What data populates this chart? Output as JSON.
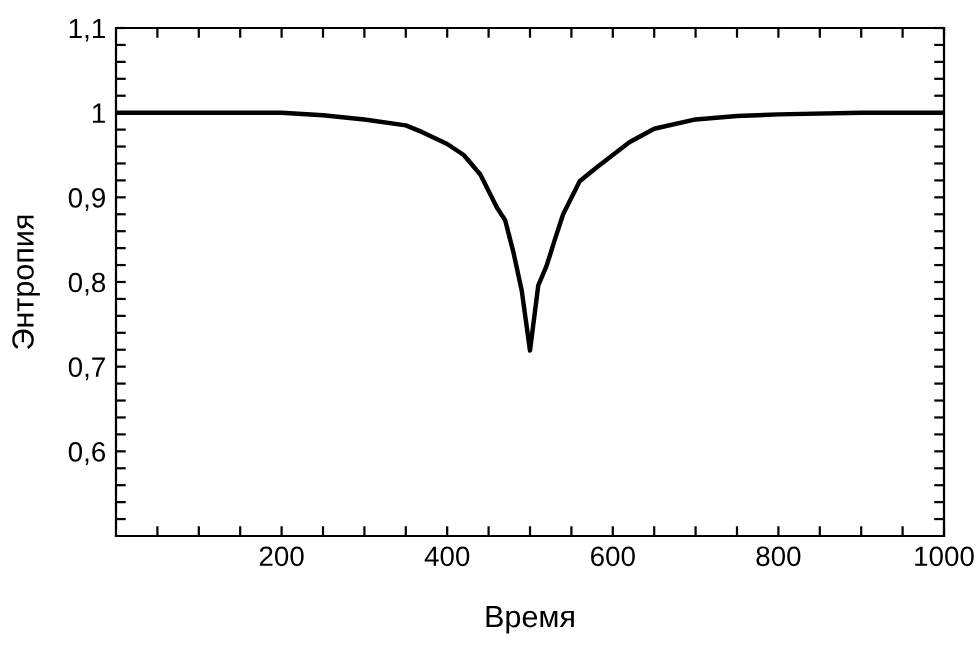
{
  "chart_data": {
    "type": "line",
    "xlabel": "Время",
    "ylabel": "Энтропия",
    "x": [
      0,
      100,
      200,
      250,
      300,
      350,
      370,
      400,
      420,
      440,
      460,
      470,
      480,
      490,
      500,
      510,
      520,
      530,
      540,
      560,
      580,
      600,
      620,
      650,
      700,
      750,
      800,
      900,
      1000
    ],
    "series": [
      {
        "color": "#000000",
        "values": [
          1.0,
          1.0,
          1.0,
          0.997,
          0.992,
          0.985,
          0.977,
          0.963,
          0.95,
          0.927,
          0.888,
          0.873,
          0.835,
          0.79,
          0.719,
          0.796,
          0.819,
          0.85,
          0.88,
          0.919,
          0.935,
          0.95,
          0.965,
          0.981,
          0.992,
          0.996,
          0.998,
          1.0,
          1.0
        ]
      }
    ],
    "xlim": [
      0,
      1000
    ],
    "ylim": [
      0.5,
      1.1
    ],
    "xticks": [
      {
        "value": 50,
        "label": null
      },
      {
        "value": 100,
        "label": null
      },
      {
        "value": 150,
        "label": null
      },
      200,
      {
        "value": 250,
        "label": null
      },
      {
        "value": 300,
        "label": null
      },
      {
        "value": 350,
        "label": null
      },
      400,
      {
        "value": 450,
        "label": null
      },
      {
        "value": 500,
        "label": null
      },
      {
        "value": 550,
        "label": null
      },
      600,
      {
        "value": 650,
        "label": null
      },
      {
        "value": 700,
        "label": null
      },
      {
        "value": 750,
        "label": null
      },
      800,
      {
        "value": 850,
        "label": null
      },
      {
        "value": 900,
        "label": null
      },
      {
        "value": 950,
        "label": null
      },
      1000
    ],
    "yticks": [
      {
        "value": 0.52,
        "label": null
      },
      {
        "value": 0.54,
        "label": null
      },
      {
        "value": 0.56,
        "label": null
      },
      {
        "value": 0.58,
        "label": null
      },
      {
        "value": 0.6,
        "label": "0,6"
      },
      {
        "value": 0.62,
        "label": null
      },
      {
        "value": 0.64,
        "label": null
      },
      {
        "value": 0.66,
        "label": null
      },
      {
        "value": 0.68,
        "label": null
      },
      {
        "value": 0.7,
        "label": "0,7"
      },
      {
        "value": 0.72,
        "label": null
      },
      {
        "value": 0.74,
        "label": null
      },
      {
        "value": 0.76,
        "label": null
      },
      {
        "value": 0.78,
        "label": null
      },
      {
        "value": 0.8,
        "label": "0,8"
      },
      {
        "value": 0.82,
        "label": null
      },
      {
        "value": 0.84,
        "label": null
      },
      {
        "value": 0.86,
        "label": null
      },
      {
        "value": 0.88,
        "label": null
      },
      {
        "value": 0.9,
        "label": "0,9"
      },
      {
        "value": 0.92,
        "label": null
      },
      {
        "value": 0.94,
        "label": null
      },
      {
        "value": 0.96,
        "label": null
      },
      {
        "value": 0.98,
        "label": null
      },
      1,
      {
        "value": 1.02,
        "label": null
      },
      {
        "value": 1.04,
        "label": null
      },
      {
        "value": 1.06,
        "label": null
      },
      {
        "value": 1.08,
        "label": null
      },
      {
        "value": 1.1,
        "label": "1,1"
      }
    ],
    "marker": "none",
    "line_style": "solid"
  }
}
